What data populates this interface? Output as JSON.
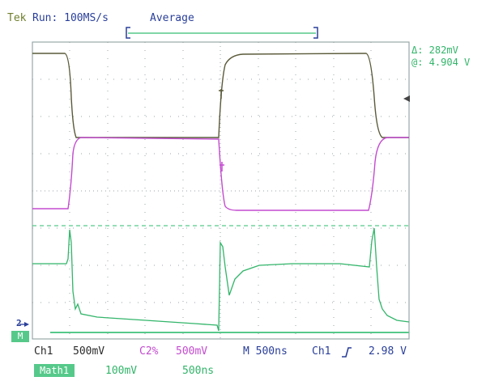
{
  "header": {
    "brand": "Tek",
    "run_status": "Run: 100MS/s",
    "acq_mode": "Average"
  },
  "measurements": {
    "delta": "Δ: 282mV",
    "at": "@: 4.904 V"
  },
  "markers": {
    "ch2": "2",
    "math": "M"
  },
  "status_bar": {
    "ch1_label": "Ch1",
    "ch1_scale": "500mV",
    "ch2_label": "C2%",
    "ch2_scale": "500mV",
    "timebase": "M 500ns",
    "trigger_source": "Ch1",
    "trigger_slope_icon": "rising-edge-icon",
    "trigger_level": "2.98 V"
  },
  "math_bar": {
    "label": "Math1",
    "scale": "100mV",
    "time": "500ns"
  },
  "colors": {
    "ch1": "#5a5a3a",
    "ch2": "#c44bd0",
    "math": "#32b56a",
    "grid": "#9aa6a8"
  }
}
